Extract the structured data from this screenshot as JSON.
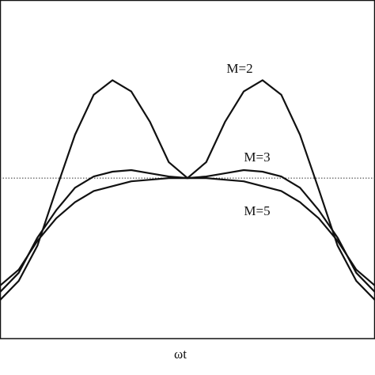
{
  "chart_data": {
    "type": "line",
    "x_label": "ωt",
    "x": [
      0,
      0.05,
      0.1,
      0.15,
      0.2,
      0.25,
      0.3,
      0.35,
      0.4,
      0.45,
      0.5,
      0.55,
      0.6,
      0.65,
      0.7,
      0.75,
      0.8,
      0.85,
      0.9,
      0.95,
      1
    ],
    "xlim": [
      0,
      1
    ],
    "ylim": [
      0,
      2.1
    ],
    "reference_line": 1,
    "series": [
      {
        "name": "M=2",
        "color": "#111111",
        "values": [
          0.24,
          0.36,
          0.58,
          0.93,
          1.27,
          1.52,
          1.61,
          1.54,
          1.35,
          1.1,
          1.0,
          1.1,
          1.35,
          1.54,
          1.61,
          1.52,
          1.27,
          0.93,
          0.58,
          0.36,
          0.24
        ]
      },
      {
        "name": "M=3",
        "color": "#111111",
        "values": [
          0.29,
          0.41,
          0.63,
          0.8,
          0.94,
          1.01,
          1.04,
          1.05,
          1.03,
          1.01,
          1.0,
          1.01,
          1.03,
          1.05,
          1.04,
          1.01,
          0.94,
          0.8,
          0.63,
          0.41,
          0.29
        ]
      },
      {
        "name": "M=5",
        "color": "#111111",
        "values": [
          0.33,
          0.43,
          0.61,
          0.75,
          0.85,
          0.92,
          0.95,
          0.98,
          0.99,
          1.0,
          1.0,
          1.0,
          0.99,
          0.98,
          0.95,
          0.92,
          0.85,
          0.75,
          0.61,
          0.43,
          0.33
        ]
      }
    ]
  }
}
